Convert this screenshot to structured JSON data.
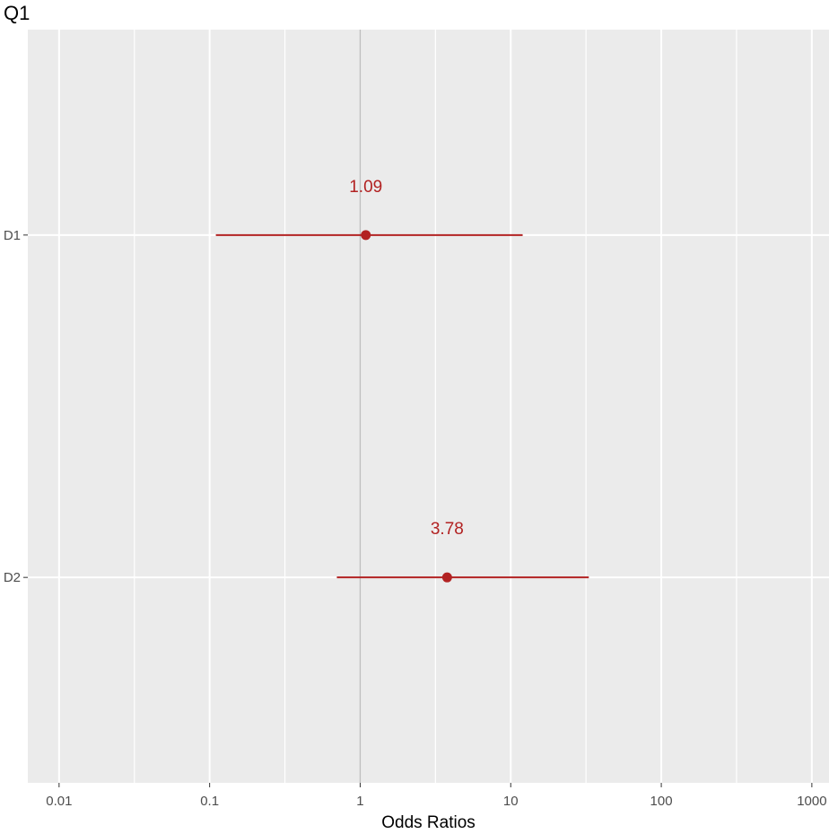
{
  "chart_data": {
    "type": "scatter",
    "title": "Q1",
    "xlabel": "Odds Ratios",
    "ylabel": "",
    "x_scale": "log10",
    "xlim": [
      0.0062,
      1300
    ],
    "x_ticks": [
      "0.01",
      "0.1",
      "1",
      "10",
      "100",
      "1000"
    ],
    "reference_line_x": 1,
    "grid": true,
    "legend": "none",
    "categories": [
      "D1",
      "D2"
    ],
    "points": [
      {
        "label": "D1",
        "estimate": 1.09,
        "estimate_label": "1.09",
        "ci_low": 0.11,
        "ci_high": 12.0
      },
      {
        "label": "D2",
        "estimate": 3.78,
        "estimate_label": "3.78",
        "ci_low": 0.7,
        "ci_high": 33.0
      }
    ],
    "colors": {
      "point": "#b22222",
      "panel_background": "#ebebeb",
      "grid": "#ffffff",
      "reference_line": "#bdbdbd"
    }
  }
}
